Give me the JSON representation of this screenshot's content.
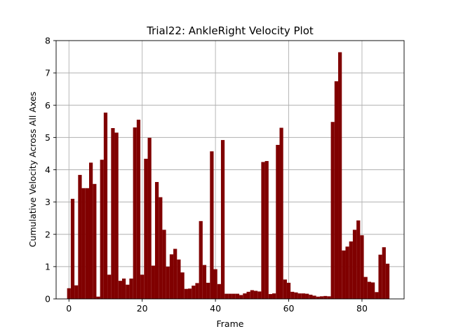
{
  "colors": {
    "bar": "#800000",
    "grid": "#b0b0b0",
    "background": "#ffffff"
  },
  "chart_data": {
    "type": "bar",
    "title": "Trial22: AnkleRight Velocity Plot",
    "xlabel": "Frame",
    "ylabel": "Cumulative Velocity Across All Axes",
    "xlim": [
      -3.5,
      91.5
    ],
    "ylim": [
      0,
      8
    ],
    "xticks": [
      0,
      20,
      40,
      60,
      80
    ],
    "yticks": [
      0,
      1,
      2,
      3,
      4,
      5,
      6,
      7,
      8
    ],
    "grid": true,
    "x": [
      0,
      1,
      2,
      3,
      4,
      5,
      6,
      7,
      8,
      9,
      10,
      11,
      12,
      13,
      14,
      15,
      16,
      17,
      18,
      19,
      20,
      21,
      22,
      23,
      24,
      25,
      26,
      27,
      28,
      29,
      30,
      31,
      32,
      33,
      34,
      35,
      36,
      37,
      38,
      39,
      40,
      41,
      42,
      43,
      44,
      45,
      46,
      47,
      48,
      49,
      50,
      51,
      52,
      53,
      54,
      55,
      56,
      57,
      58,
      59,
      60,
      61,
      62,
      63,
      64,
      65,
      66,
      67,
      68,
      69,
      70,
      71,
      72,
      73,
      74,
      75,
      76,
      77,
      78,
      79,
      80,
      81,
      82,
      83,
      84,
      85,
      86,
      87
    ],
    "values": [
      0.33,
      3.1,
      0.42,
      3.84,
      3.43,
      3.43,
      4.22,
      3.56,
      0.07,
      4.31,
      5.77,
      0.75,
      5.29,
      5.15,
      0.56,
      0.63,
      0.44,
      0.63,
      5.31,
      5.55,
      0.75,
      4.34,
      4.99,
      1.03,
      3.62,
      3.15,
      2.14,
      1.0,
      1.38,
      1.55,
      1.22,
      0.82,
      0.31,
      0.32,
      0.41,
      0.49,
      2.41,
      1.05,
      0.5,
      4.57,
      0.92,
      0.46,
      4.92,
      0.16,
      0.16,
      0.16,
      0.16,
      0.12,
      0.17,
      0.22,
      0.27,
      0.25,
      0.23,
      4.24,
      4.27,
      0.15,
      0.17,
      4.77,
      5.3,
      0.6,
      0.5,
      0.22,
      0.2,
      0.17,
      0.17,
      0.16,
      0.13,
      0.1,
      0.07,
      0.08,
      0.09,
      0.08,
      5.48,
      6.74,
      7.64,
      1.5,
      1.62,
      1.78,
      2.14,
      2.43,
      1.97,
      0.68,
      0.53,
      0.51,
      0.21,
      1.37,
      1.6,
      1.09
    ]
  }
}
